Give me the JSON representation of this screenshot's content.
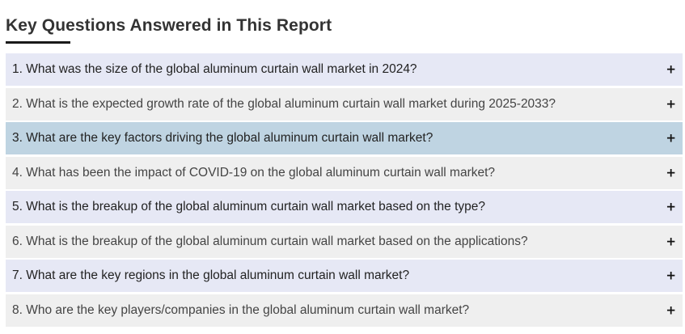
{
  "heading": "Key Questions Answered in This Report",
  "toggle_symbol": "+",
  "colors": {
    "row_odd": "#e6e8f5",
    "row_even": "#efefef",
    "row_active": "#bfd4e2",
    "heading_text": "#333333"
  },
  "questions": [
    "1. What was the size of the global aluminum curtain wall market in 2024?",
    "2. What is the expected growth rate of the global aluminum curtain wall market during 2025-2033?",
    "3. What are the key factors driving the global aluminum curtain wall market?",
    "4. What has been the impact of COVID-19 on the global aluminum curtain wall market?",
    "5. What is the breakup of the global aluminum curtain wall market based on the type?",
    "6. What is the breakup of the global aluminum curtain wall market based on the applications?",
    "7. What are the key regions in the global aluminum curtain wall market?",
    "8. Who are the key players/companies in the global aluminum curtain wall market?"
  ]
}
